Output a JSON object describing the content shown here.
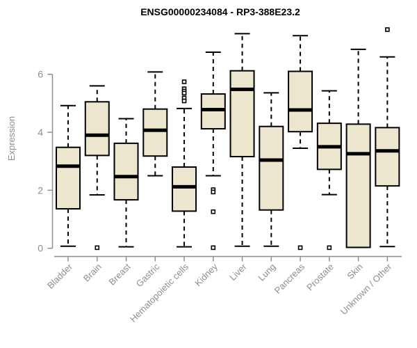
{
  "chart_data": {
    "type": "box",
    "title": "ENSG00000234084 - RP3-388E23.2",
    "ylabel": "Expression",
    "xlabel": "",
    "ylim": [
      0,
      7.6
    ],
    "yticks": [
      0,
      2,
      4,
      6
    ],
    "grid": false,
    "legend": "none",
    "colors": {
      "box_fill": "#ece6cf",
      "box_stroke": "#000000",
      "median": "#000000",
      "whisker": "#000000",
      "axis": "#8e8e8e",
      "axis_text": "#8e8e8e",
      "title_text": "#000000",
      "background": "#ffffff"
    },
    "categories": [
      "Bladder",
      "Brain",
      "Breast",
      "Gastric",
      "Hematopoietic cells",
      "Kidney",
      "Liver",
      "Lung",
      "Pancreas",
      "Prostate",
      "Skin",
      "Unknown / Other"
    ],
    "series": [
      {
        "name": "Bladder",
        "min": 0.07,
        "q1": 1.36,
        "median": 2.83,
        "q3": 3.48,
        "max": 4.92,
        "outliers": []
      },
      {
        "name": "Brain",
        "min": 1.84,
        "q1": 3.2,
        "median": 3.9,
        "q3": 5.05,
        "max": 5.6,
        "outliers": [
          0.02
        ]
      },
      {
        "name": "Breast",
        "min": 0.05,
        "q1": 1.67,
        "median": 2.47,
        "q3": 3.62,
        "max": 4.47,
        "outliers": []
      },
      {
        "name": "Gastric",
        "min": 2.5,
        "q1": 3.18,
        "median": 4.07,
        "q3": 4.8,
        "max": 6.08,
        "outliers": []
      },
      {
        "name": "Hematopoietic cells",
        "min": 0.05,
        "q1": 1.28,
        "median": 2.12,
        "q3": 2.8,
        "max": 4.82,
        "outliers": [
          5.74,
          5.5,
          5.42,
          5.35,
          5.18,
          5.08
        ]
      },
      {
        "name": "Kidney",
        "min": 2.5,
        "q1": 4.12,
        "median": 4.78,
        "q3": 5.32,
        "max": 6.76,
        "outliers": [
          2.02,
          1.94,
          1.26,
          0.02
        ]
      },
      {
        "name": "Liver",
        "min": 0.07,
        "q1": 3.16,
        "median": 5.48,
        "q3": 6.12,
        "max": 7.4,
        "outliers": []
      },
      {
        "name": "Lung",
        "min": 0.07,
        "q1": 1.32,
        "median": 3.04,
        "q3": 4.2,
        "max": 5.36,
        "outliers": []
      },
      {
        "name": "Pancreas",
        "min": 3.45,
        "q1": 4.02,
        "median": 4.77,
        "q3": 6.1,
        "max": 7.33,
        "outliers": [
          0.02
        ]
      },
      {
        "name": "Prostate",
        "min": 1.85,
        "q1": 2.72,
        "median": 3.5,
        "q3": 4.31,
        "max": 5.43,
        "outliers": [
          0.02
        ]
      },
      {
        "name": "Skin",
        "min": 0.03,
        "q1": 0.03,
        "median": 3.26,
        "q3": 4.28,
        "max": 6.86,
        "outliers": []
      },
      {
        "name": "Unknown / Other",
        "min": 0.06,
        "q1": 2.15,
        "median": 3.36,
        "q3": 4.16,
        "max": 6.6,
        "outliers": [
          7.54
        ]
      }
    ]
  }
}
